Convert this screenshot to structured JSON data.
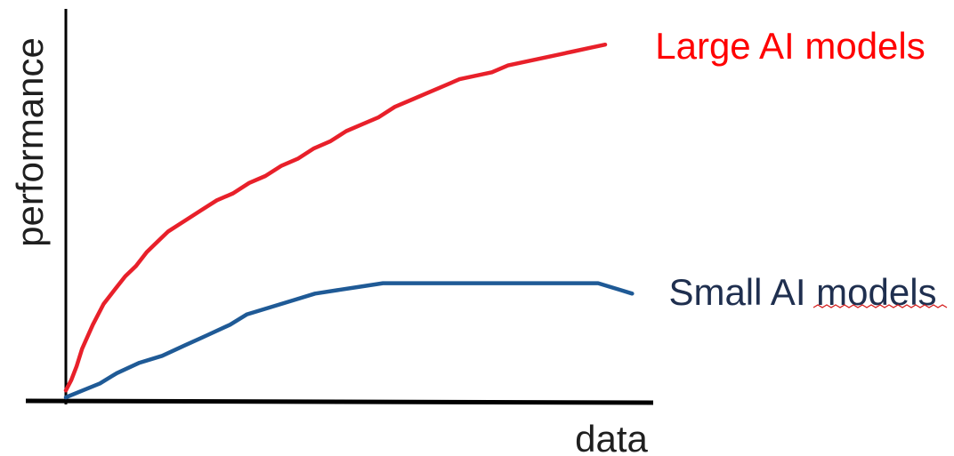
{
  "chart_data": {
    "type": "line",
    "title": "",
    "xlabel": "data",
    "ylabel": "performance",
    "xlim": [
      0,
      100
    ],
    "ylim": [
      0,
      100
    ],
    "grid": false,
    "legend": "inline labels at line ends",
    "series": [
      {
        "name": "Large AI models",
        "color": "#e8202a",
        "x": [
          0,
          1,
          2,
          3,
          5,
          7,
          9,
          11,
          13,
          15,
          17,
          19,
          22,
          25,
          28,
          31,
          34,
          37,
          40,
          43,
          46,
          49,
          52,
          55,
          58,
          61,
          64,
          67,
          70,
          73,
          76,
          79,
          82,
          85,
          88,
          91,
          94,
          97,
          100
        ],
        "y": [
          2,
          5,
          9,
          14,
          21,
          27,
          31,
          35,
          38,
          42,
          45,
          48,
          51,
          54,
          57,
          59,
          62,
          64,
          67,
          69,
          72,
          74,
          77,
          79,
          81,
          84,
          86,
          88,
          90,
          92,
          93,
          94,
          96,
          97,
          98,
          99,
          100,
          101,
          102
        ]
      },
      {
        "name": "Small AI models",
        "color": "#1f5a96",
        "x": [
          0,
          3,
          6,
          9,
          13,
          17,
          21,
          25,
          29,
          32,
          36,
          40,
          44,
          48,
          52,
          56,
          60,
          64,
          68,
          72,
          76,
          80,
          84,
          88,
          90,
          92,
          94,
          96,
          98,
          100
        ],
        "y": [
          0,
          2,
          4,
          7,
          10,
          12,
          15,
          18,
          21,
          24,
          26,
          28,
          30,
          31,
          32,
          33,
          33,
          33,
          33,
          33,
          33,
          33,
          33,
          33,
          33,
          33,
          33,
          32,
          31,
          30
        ]
      }
    ]
  }
}
